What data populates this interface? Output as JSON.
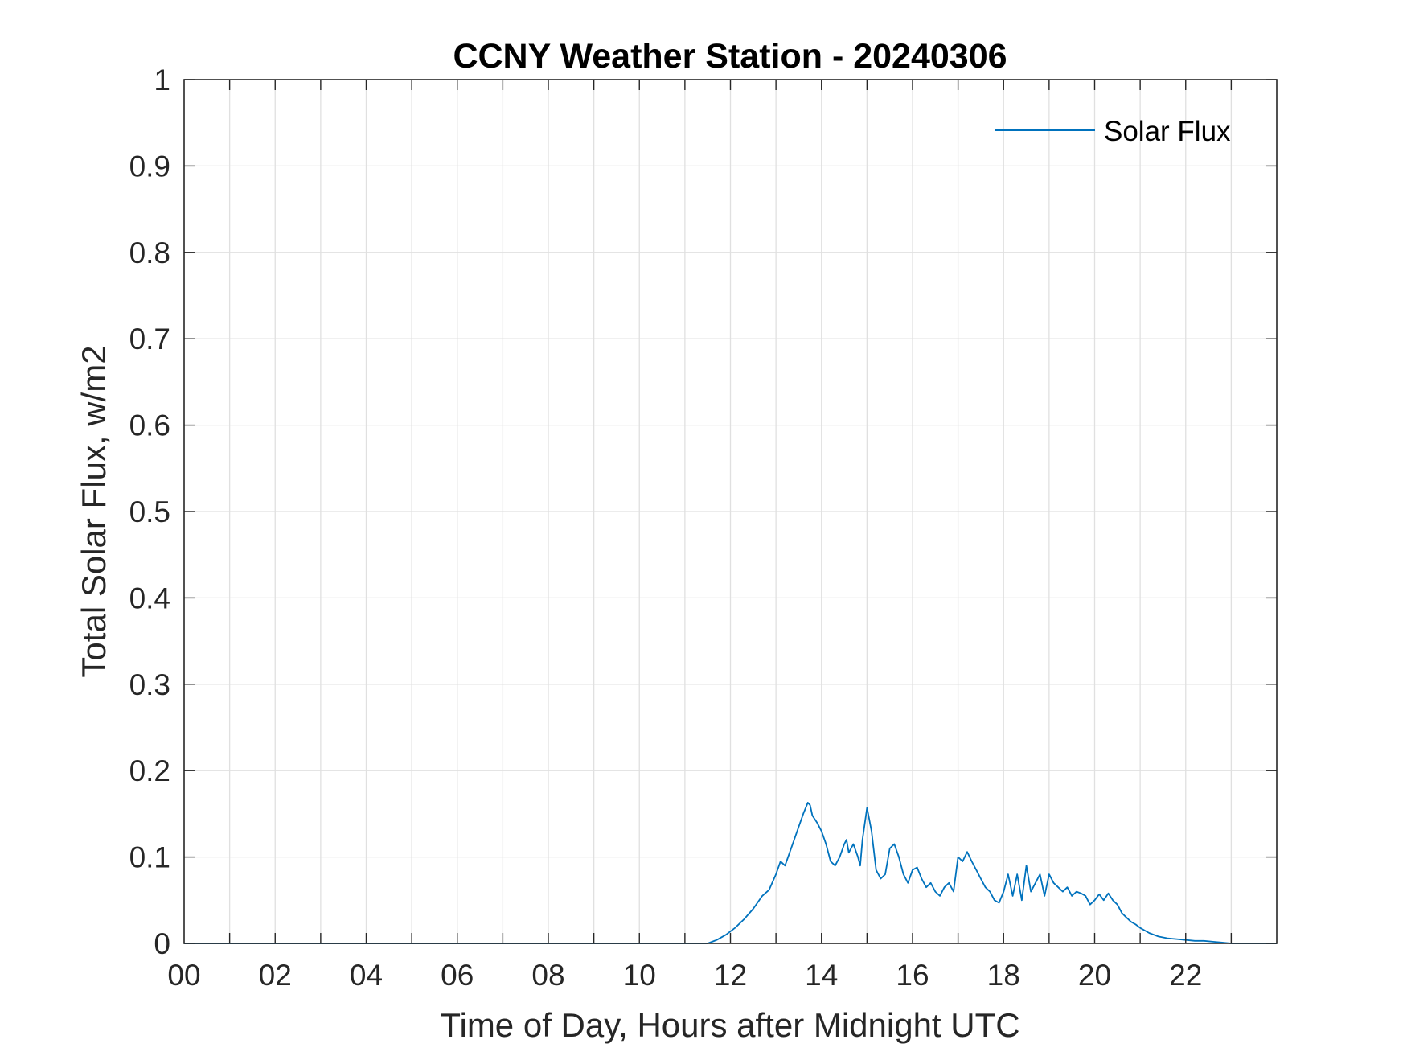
{
  "chart_data": {
    "type": "line",
    "title": "CCNY Weather Station - 20240306",
    "xlabel": "Time of Day, Hours after Midnight UTC",
    "ylabel": "Total Solar Flux, w/m2",
    "xlim": [
      0,
      24
    ],
    "ylim": [
      0,
      1
    ],
    "xticks": [
      0,
      2,
      4,
      6,
      8,
      10,
      12,
      14,
      16,
      18,
      20,
      22
    ],
    "xtick_labels": [
      "00",
      "02",
      "04",
      "06",
      "08",
      "10",
      "12",
      "14",
      "16",
      "18",
      "20",
      "22"
    ],
    "yticks": [
      0,
      0.1,
      0.2,
      0.3,
      0.4,
      0.5,
      0.6,
      0.7,
      0.8,
      0.9,
      1
    ],
    "ytick_labels": [
      "0",
      "0.1",
      "0.2",
      "0.3",
      "0.4",
      "0.5",
      "0.6",
      "0.7",
      "0.8",
      "0.9",
      "1"
    ],
    "grid": true,
    "legend_position": "top-right",
    "colors": {
      "series": "#0072BD",
      "grid": "#e0e0e0",
      "axes": "#262626"
    },
    "series": [
      {
        "name": "Solar Flux",
        "x": [
          0,
          11.3,
          11.5,
          11.7,
          11.9,
          12.1,
          12.3,
          12.5,
          12.7,
          12.85,
          13.0,
          13.1,
          13.2,
          13.3,
          13.4,
          13.5,
          13.6,
          13.7,
          13.75,
          13.8,
          13.9,
          14.0,
          14.1,
          14.2,
          14.3,
          14.4,
          14.5,
          14.55,
          14.6,
          14.7,
          14.8,
          14.85,
          14.9,
          15.0,
          15.1,
          15.2,
          15.3,
          15.4,
          15.5,
          15.6,
          15.7,
          15.8,
          15.9,
          16.0,
          16.1,
          16.2,
          16.3,
          16.4,
          16.5,
          16.6,
          16.7,
          16.8,
          16.9,
          17.0,
          17.1,
          17.2,
          17.3,
          17.4,
          17.5,
          17.6,
          17.7,
          17.8,
          17.9,
          18.0,
          18.1,
          18.2,
          18.3,
          18.4,
          18.5,
          18.6,
          18.7,
          18.8,
          18.9,
          19.0,
          19.1,
          19.2,
          19.3,
          19.4,
          19.5,
          19.6,
          19.7,
          19.8,
          19.9,
          20.0,
          20.1,
          20.2,
          20.3,
          20.4,
          20.5,
          20.6,
          20.7,
          20.8,
          20.9,
          21.0,
          21.2,
          21.4,
          21.6,
          21.8,
          22.0,
          22.2,
          22.4,
          22.6,
          22.8,
          23.0,
          23.5,
          24.0
        ],
        "y": [
          0,
          0,
          0,
          0.004,
          0.01,
          0.018,
          0.028,
          0.04,
          0.055,
          0.062,
          0.08,
          0.095,
          0.09,
          0.105,
          0.12,
          0.135,
          0.15,
          0.163,
          0.16,
          0.148,
          0.14,
          0.13,
          0.115,
          0.095,
          0.09,
          0.1,
          0.115,
          0.12,
          0.105,
          0.115,
          0.1,
          0.09,
          0.12,
          0.157,
          0.13,
          0.085,
          0.075,
          0.08,
          0.11,
          0.115,
          0.1,
          0.08,
          0.07,
          0.085,
          0.088,
          0.075,
          0.065,
          0.07,
          0.06,
          0.055,
          0.065,
          0.07,
          0.06,
          0.1,
          0.095,
          0.106,
          0.095,
          0.085,
          0.075,
          0.065,
          0.06,
          0.05,
          0.047,
          0.06,
          0.08,
          0.055,
          0.08,
          0.05,
          0.09,
          0.06,
          0.07,
          0.08,
          0.055,
          0.08,
          0.07,
          0.065,
          0.06,
          0.065,
          0.055,
          0.06,
          0.058,
          0.055,
          0.045,
          0.05,
          0.057,
          0.05,
          0.058,
          0.05,
          0.045,
          0.035,
          0.03,
          0.025,
          0.022,
          0.018,
          0.012,
          0.008,
          0.006,
          0.005,
          0.004,
          0.003,
          0.003,
          0.002,
          0.001,
          0,
          0,
          0
        ]
      }
    ]
  }
}
